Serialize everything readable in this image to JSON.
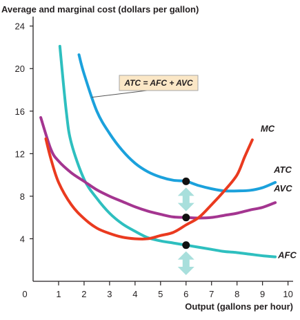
{
  "chart_data": {
    "type": "line",
    "title": "",
    "ylabel": "Average and marginal cost (dollars per gallon)",
    "xlabel": "Output (gallons per hour)",
    "xlim": [
      0,
      10.2
    ],
    "ylim": [
      0,
      24.5
    ],
    "xticks": [
      1,
      2,
      3,
      4,
      5,
      6,
      7,
      8,
      9,
      10
    ],
    "xtick_labels": [
      "1",
      "2",
      "3",
      "4",
      "5",
      "6",
      "7",
      "8",
      "9",
      "10"
    ],
    "yticks": [
      4,
      8,
      12,
      16,
      20,
      24
    ],
    "ytick_labels": [
      "4",
      "8",
      "12",
      "16",
      "20",
      "24"
    ],
    "origin_label": "0",
    "grid": false,
    "callout": "ATC = AFC + AVC",
    "series": [
      {
        "name": "ATC",
        "color": "#1ba1dc",
        "points": [
          [
            1.8,
            21.3
          ],
          [
            2,
            19.5
          ],
          [
            2.5,
            16.0
          ],
          [
            3,
            13.9
          ],
          [
            3.5,
            12.3
          ],
          [
            4,
            11.1
          ],
          [
            4.5,
            10.3
          ],
          [
            5,
            9.8
          ],
          [
            5.5,
            9.5
          ],
          [
            6,
            9.4
          ],
          [
            6.5,
            9.0
          ],
          [
            7,
            8.7
          ],
          [
            7.5,
            8.5
          ],
          [
            8,
            8.5
          ],
          [
            8.5,
            8.55
          ],
          [
            9,
            8.8
          ],
          [
            9.5,
            9.3
          ]
        ]
      },
      {
        "name": "AVC",
        "color": "#a43590",
        "points": [
          [
            0.3,
            15.4
          ],
          [
            0.7,
            12.4
          ],
          [
            1,
            11.3
          ],
          [
            1.5,
            10.2
          ],
          [
            2,
            9.4
          ],
          [
            2.5,
            8.6
          ],
          [
            3,
            8.0
          ],
          [
            3.5,
            7.5
          ],
          [
            4,
            7.0
          ],
          [
            4.5,
            6.6
          ],
          [
            5,
            6.3
          ],
          [
            5.5,
            6.05
          ],
          [
            6,
            6.0
          ],
          [
            6.5,
            5.95
          ],
          [
            7,
            6.0
          ],
          [
            7.5,
            6.2
          ],
          [
            8,
            6.4
          ],
          [
            8.5,
            6.7
          ],
          [
            9,
            6.95
          ],
          [
            9.5,
            7.4
          ]
        ]
      },
      {
        "name": "AFC",
        "color": "#2ebfbf",
        "points": [
          [
            1.05,
            22.1
          ],
          [
            1.3,
            16.0
          ],
          [
            1.5,
            13.0
          ],
          [
            2,
            9.6
          ],
          [
            2.5,
            7.8
          ],
          [
            3,
            6.4
          ],
          [
            3.5,
            5.4
          ],
          [
            4,
            4.7
          ],
          [
            4.5,
            4.1
          ],
          [
            5,
            3.8
          ],
          [
            5.5,
            3.6
          ],
          [
            6,
            3.4
          ],
          [
            6.5,
            3.2
          ],
          [
            7,
            3.0
          ],
          [
            7.5,
            2.8
          ],
          [
            8,
            2.7
          ],
          [
            8.5,
            2.55
          ],
          [
            9,
            2.4
          ],
          [
            9.5,
            2.3
          ]
        ]
      },
      {
        "name": "MC",
        "color": "#ea3a1f",
        "points": [
          [
            0.5,
            13.4
          ],
          [
            0.7,
            11.5
          ],
          [
            1,
            9.3
          ],
          [
            1.5,
            7.2
          ],
          [
            2,
            5.9
          ],
          [
            2.5,
            5.0
          ],
          [
            3,
            4.5
          ],
          [
            3.5,
            4.15
          ],
          [
            4,
            4.0
          ],
          [
            4.5,
            4.0
          ],
          [
            5,
            4.3
          ],
          [
            5.5,
            4.6
          ],
          [
            6,
            5.3
          ],
          [
            6.5,
            6.0
          ],
          [
            7,
            7.2
          ],
          [
            7.5,
            8.5
          ],
          [
            8,
            10.0
          ],
          [
            8.3,
            11.7
          ],
          [
            8.6,
            13.3
          ]
        ]
      }
    ],
    "markers": [
      {
        "series": "ATC",
        "x": 6,
        "y": 9.4
      },
      {
        "series": "AVC",
        "x": 6,
        "y": 6.0
      },
      {
        "series": "AFC",
        "x": 6,
        "y": 3.4
      }
    ],
    "arrows": [
      {
        "x": 6,
        "from": 6.0,
        "to": 9.4
      },
      {
        "x": 6,
        "from": 0,
        "to": 3.4
      }
    ],
    "colors": {
      "arrow": "#a8dfdc",
      "marker": "#111111",
      "callout_bg": "#fbe7c6",
      "callout_border": "#a6a6a6",
      "axis": "#231f20"
    }
  }
}
